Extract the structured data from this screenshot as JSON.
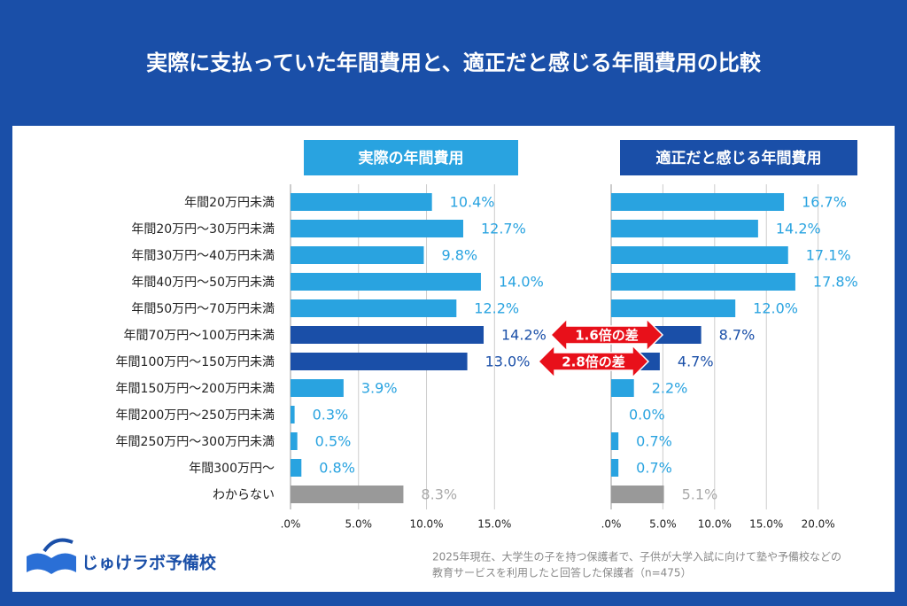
{
  "title": "実際に支払っていた年間費用と、適正だと感じる年間費用の比較",
  "annotations": [
    "1.6倍の差",
    "2.8倍の差"
  ],
  "logo": "じゅけラボ予備校",
  "note": [
    "2025年現在、大学生の子を持つ保護者で、子供が大学入試に向けて塾や予備校などの",
    "教育サービスを利用したと回答した保護者（n=475）"
  ],
  "chart_data": [
    {
      "type": "bar",
      "orientation": "horizontal",
      "title": "実際の年間費用",
      "header_color": "#29a3e0",
      "categories": [
        "年間20万円未満",
        "年間20万円〜30万円未満",
        "年間30万円〜40万円未満",
        "年間40万円〜50万円未満",
        "年間50万円〜70万円未満",
        "年間70万円〜100万円未満",
        "年間100万円〜150万円未満",
        "年間150万円〜200万円未満",
        "年間200万円〜250万円未満",
        "年間250万円〜300万円未満",
        "年間300万円〜",
        "わからない"
      ],
      "values": [
        10.4,
        12.7,
        9.8,
        14.0,
        12.2,
        14.2,
        13.0,
        3.9,
        0.3,
        0.5,
        0.8,
        8.3
      ],
      "value_labels": [
        "10.4%",
        "12.7%",
        "9.8%",
        "14.0%",
        "12.2%",
        "14.2%",
        "13.0%",
        "3.9%",
        "0.3%",
        "0.5%",
        "0.8%",
        "8.3%"
      ],
      "colors": [
        "#29a3e0",
        "#29a3e0",
        "#29a3e0",
        "#29a3e0",
        "#29a3e0",
        "#1a4fa8",
        "#1a4fa8",
        "#29a3e0",
        "#29a3e0",
        "#29a3e0",
        "#29a3e0",
        "#999999"
      ],
      "xlim": [
        0,
        17
      ],
      "xticks": [
        {
          "value": 0,
          "label": ".0%"
        },
        {
          "value": 5,
          "label": "5.0%"
        },
        {
          "value": 10,
          "label": "10.0%"
        },
        {
          "value": 15,
          "label": "15.0%"
        }
      ],
      "grid": true
    },
    {
      "type": "bar",
      "orientation": "horizontal",
      "title": "適正だと感じる年間費用",
      "header_color": "#1a4fa8",
      "values": [
        16.7,
        14.2,
        17.1,
        17.8,
        12.0,
        8.7,
        4.7,
        2.2,
        0.0,
        0.7,
        0.7,
        5.1
      ],
      "value_labels": [
        "16.7%",
        "14.2%",
        "17.1%",
        "17.8%",
        "12.0%",
        "8.7%",
        "4.7%",
        "2.2%",
        "0.0%",
        "0.7%",
        "0.7%",
        "5.1%"
      ],
      "colors": [
        "#29a3e0",
        "#29a3e0",
        "#29a3e0",
        "#29a3e0",
        "#29a3e0",
        "#1a4fa8",
        "#1a4fa8",
        "#29a3e0",
        "#29a3e0",
        "#29a3e0",
        "#29a3e0",
        "#999999"
      ],
      "xlim": [
        0,
        22
      ],
      "xticks": [
        {
          "value": 0,
          "label": ".0%"
        },
        {
          "value": 5,
          "label": "5.0%"
        },
        {
          "value": 10,
          "label": "10.0%"
        },
        {
          "value": 15,
          "label": "15.0%"
        },
        {
          "value": 20,
          "label": "20.0%"
        }
      ],
      "grid": true
    }
  ]
}
